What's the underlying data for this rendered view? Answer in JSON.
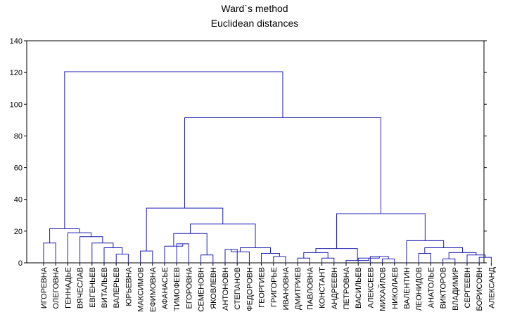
{
  "chart_data": {
    "type": "dendrogram",
    "title": "Ward`s method",
    "subtitle": "Euclidean distances",
    "ylim": [
      0,
      140
    ],
    "yticks": [
      0,
      20,
      40,
      60,
      80,
      100,
      120,
      140
    ],
    "grid": false,
    "line_color": "#1f1fb0",
    "leaves": [
      "ИГОРЕВНА",
      "ОЛЕГОВНА",
      "ГЕННАДЬЕ",
      "ВЯЧЕСЛАВ",
      "ЕВГЕНЬЕВ",
      "ВИТАЛЬЕВ",
      "ВАЛЕРЬЕВ",
      "ЮРЬЕВНА",
      "МАКСИМОВ",
      "ЕФИМОВНА",
      "АФАНАСЬЕ",
      "ТИМОФЕЕВ",
      "ЕГОРОВНА",
      "СЕМЕНОВН",
      "ЯКОВЛЕВН",
      "АНТОНОВН",
      "СТЕПАНОВ",
      "ФЕДОРОВН",
      "ГЕОРГИЕВ",
      "ГРИГОРЬЕ",
      "ИВАНОВНА",
      "ДМИТРИЕВ",
      "ПАВЛОВНА",
      "КОНСТАНТ",
      "АНДРЕЕВН",
      "ПЕТРОВНА",
      "ВАСИЛЬЕВ",
      "АЛЕКСЕЕВ",
      "МИХАЙЛОВ",
      "НИКОЛАЕВ",
      "ВАЛЕНТИН",
      "ЛЕОНИДОВ",
      "АНАТОЛЬЕ",
      "ВИКТОРОВ",
      "ВЛАДИМИР",
      "СЕРГЕЕВН",
      "БОРИСОВН",
      "АЛЕКСАНД"
    ],
    "merges": [
      {
        "a": "L0",
        "b": "L1",
        "height": 12.5
      },
      {
        "a": "L6",
        "b": "L7",
        "height": 5.5
      },
      {
        "a": "L5",
        "b": "M1",
        "height": 9.5
      },
      {
        "a": "L4",
        "b": "M2",
        "height": 12.5
      },
      {
        "a": "L3",
        "b": "M3",
        "height": 16.5
      },
      {
        "a": "L2",
        "b": "M4",
        "height": 19
      },
      {
        "a": "M0",
        "b": "M5",
        "height": 21.5
      },
      {
        "a": "L8",
        "b": "L9",
        "height": 7.5
      },
      {
        "a": "L11",
        "b": "L12",
        "height": 12
      },
      {
        "a": "L10",
        "b": "M8",
        "height": 10.5
      },
      {
        "a": "L13",
        "b": "L14",
        "height": 5
      },
      {
        "a": "M9",
        "b": "M10",
        "height": 18.5
      },
      {
        "a": "L15",
        "b": "L16",
        "height": 8.5
      },
      {
        "a": "L17",
        "b": "M12",
        "height": 7
      },
      {
        "a": "L19",
        "b": "L20",
        "height": 4
      },
      {
        "a": "L18",
        "b": "M14",
        "height": 6
      },
      {
        "a": "M13",
        "b": "M15",
        "height": 9.5
      },
      {
        "a": "M11",
        "b": "M16",
        "height": 24.5
      },
      {
        "a": "M7",
        "b": "M17",
        "height": 34.5
      },
      {
        "a": "L21",
        "b": "L22",
        "height": 3
      },
      {
        "a": "L23",
        "b": "L24",
        "height": 3
      },
      {
        "a": "M19",
        "b": "M20",
        "height": 6.5
      },
      {
        "a": "L28",
        "b": "L29",
        "height": 2.5
      },
      {
        "a": "L27",
        "b": "M22",
        "height": 4
      },
      {
        "a": "L26",
        "b": "M23",
        "height": 3
      },
      {
        "a": "L25",
        "b": "M24",
        "height": 1.5
      },
      {
        "a": "M21",
        "b": "M25",
        "height": 9
      },
      {
        "a": "L31",
        "b": "L32",
        "height": 6
      },
      {
        "a": "L33",
        "b": "L34",
        "height": 2.5
      },
      {
        "a": "L36",
        "b": "L37",
        "height": 3.5
      },
      {
        "a": "L35",
        "b": "M29",
        "height": 5
      },
      {
        "a": "M28",
        "b": "M30",
        "height": 6.5
      },
      {
        "a": "M27",
        "b": "M31",
        "height": 9.5
      },
      {
        "a": "L30",
        "b": "M32",
        "height": 14
      },
      {
        "a": "M26",
        "b": "M33",
        "height": 31
      },
      {
        "a": "M18",
        "b": "M34",
        "height": 91.5
      },
      {
        "a": "M6",
        "b": "M35",
        "height": 120.5
      }
    ]
  }
}
